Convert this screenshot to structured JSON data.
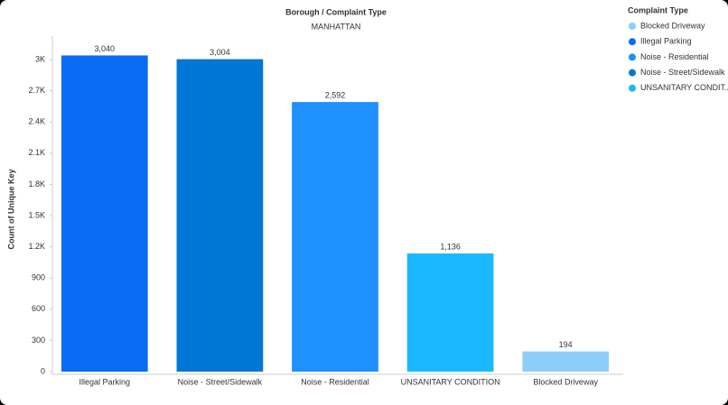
{
  "chart_data": {
    "type": "bar",
    "title": "Borough / Complaint Type",
    "subtitle": "MANHATTAN",
    "y_label": "Count of Unique Key",
    "categories": [
      "Illegal Parking",
      "Noise - Street/Sidewalk",
      "Noise - Residential",
      "UNSANITARY CONDITION",
      "Blocked Driveway"
    ],
    "values": [
      3040,
      3004,
      2592,
      1136,
      194
    ],
    "value_labels": [
      "3,040",
      "3,004",
      "2,592",
      "1,136",
      "194"
    ],
    "colors": [
      "#0a6cf5",
      "#0077d4",
      "#1e90ff",
      "#1ab8ff",
      "#8ecdfa"
    ],
    "ylim": [
      0,
      3200
    ],
    "yticks": [
      0,
      300,
      600,
      900,
      {
        "value": 1200,
        "label": "1.2K"
      },
      {
        "value": 1500,
        "label": "1.5K"
      },
      {
        "value": 1800,
        "label": "1.8K"
      },
      {
        "value": 2100,
        "label": "2.1K"
      },
      {
        "value": 2400,
        "label": "2.4K"
      },
      {
        "value": 2700,
        "label": "2.7K"
      },
      {
        "value": 3000,
        "label": "3K"
      }
    ],
    "grid": false,
    "legend": {
      "title": "Complaint Type",
      "position": "top-right",
      "items": [
        {
          "label": "Blocked Driveway",
          "color": "#8ecdfa"
        },
        {
          "label": "Illegal Parking",
          "color": "#0a6cf5"
        },
        {
          "label": "Noise - Residential",
          "color": "#1e90ff"
        },
        {
          "label": "Noise - Street/Sidewalk",
          "color": "#0077d4"
        },
        {
          "label": "UNSANITARY CONDIT...",
          "color": "#1ab8ff"
        }
      ]
    }
  }
}
